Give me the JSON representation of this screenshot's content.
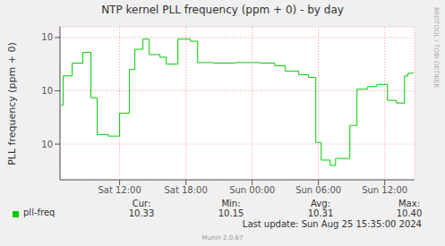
{
  "chart_data": {
    "type": "line",
    "title": "NTP kernel PLL frequency (ppm + 0) - by day",
    "y_label": "PLL frequency (ppm + 0)",
    "x": [
      6.7,
      6.89,
      7.7,
      8.67,
      9.4,
      9.97,
      10.95,
      12.0,
      12.89,
      13.38,
      14.11,
      14.68,
      15.65,
      16.22,
      17.27,
      18.41,
      19.06,
      20.52,
      22.46,
      24.73,
      26.03,
      27.0,
      28.22,
      29.11,
      29.76,
      30.25,
      31.06,
      31.55,
      32.84,
      33.49,
      34.46,
      35.28,
      36.25,
      37.06,
      37.79,
      38.11,
      38.6
    ],
    "series": [
      {
        "name": "pll-freq",
        "color": "#00cc00",
        "line_style": "step",
        "values": [
          10.273,
          10.328,
          10.352,
          10.372,
          10.287,
          10.218,
          10.215,
          10.258,
          10.34,
          10.378,
          10.397,
          10.368,
          10.363,
          10.35,
          10.397,
          10.393,
          10.353,
          10.352,
          10.353,
          10.352,
          10.347,
          10.337,
          10.33,
          10.325,
          10.203,
          10.17,
          10.16,
          10.173,
          10.235,
          10.303,
          10.308,
          10.312,
          10.282,
          10.277,
          10.328,
          10.333,
          10.333
        ]
      }
    ],
    "xlim": [
      6.6,
      38.7
    ],
    "xticks": [
      {
        "value": 12,
        "label": "Sat 12:00"
      },
      {
        "value": 18,
        "label": "Sat 18:00"
      },
      {
        "value": 24,
        "label": "Sun 00:00"
      },
      {
        "value": 30,
        "label": "Sun 06:00"
      },
      {
        "value": 36,
        "label": "Sun 12:00"
      }
    ],
    "ylim": [
      10.133,
      10.42
    ],
    "yticks": [
      {
        "value": 10.2,
        "label": "10"
      },
      {
        "value": 10.3,
        "label": "10"
      },
      {
        "value": 10.4,
        "label": "10"
      }
    ],
    "grid": true,
    "summary": {
      "headers": [
        "Cur:",
        "Min:",
        "Avg:",
        "Max:"
      ],
      "values": [
        "10.33",
        "10.15",
        "10.31",
        "10.40"
      ]
    },
    "last_update": "Last update: Sun Aug 25 15:35:00 2024",
    "footer": "Munin 2.0.67",
    "watermark": "RRDTOOL / TOBI OETIKER"
  }
}
